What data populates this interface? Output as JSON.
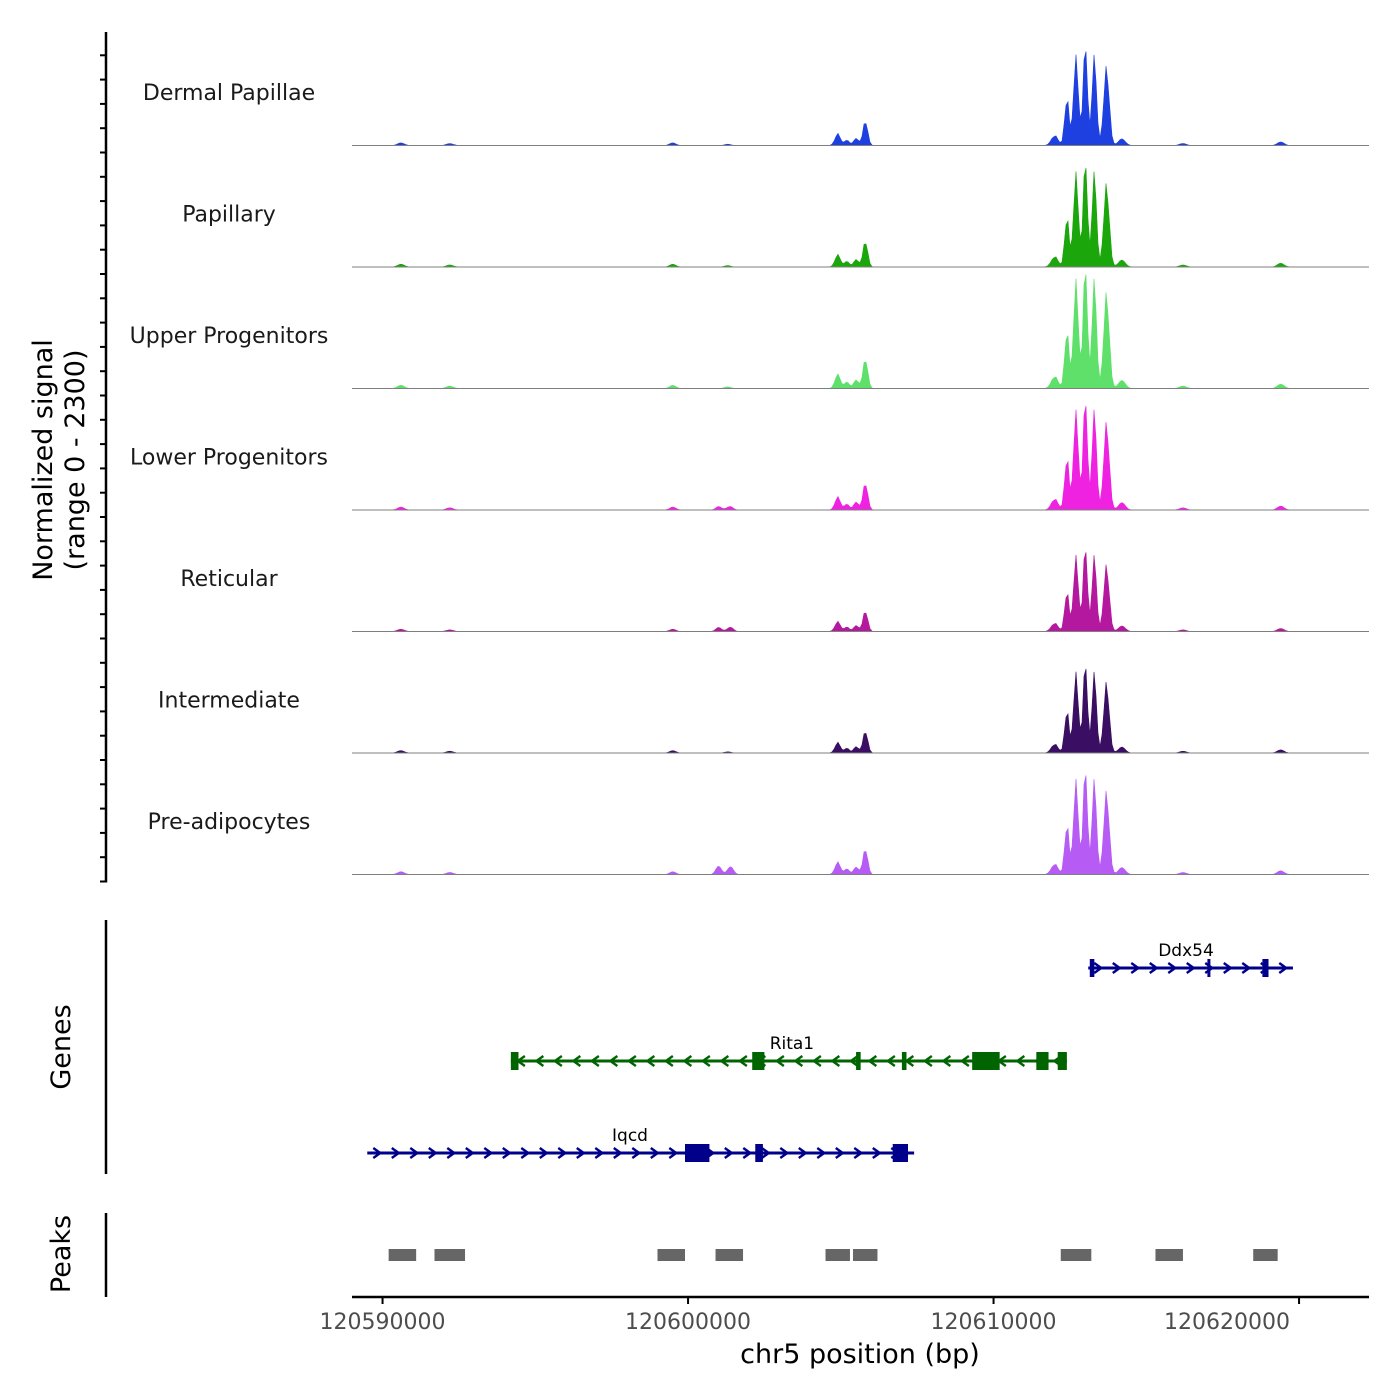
{
  "colors": {
    "axis": "#000000",
    "baseline": "#7f7f7f",
    "peak": "#666666"
  },
  "chart_data": {
    "type": "genome-track",
    "ylabel": [
      "Normalized signal",
      "(range 0 - 2300)"
    ],
    "signal_range": [
      0,
      2300
    ],
    "xlabel": "chr5 position (bp)",
    "xlim": [
      120589000,
      120621000
    ],
    "xticks": [
      120590000,
      120600000,
      120610000,
      120620000
    ],
    "xtick_labels": [
      "120590000",
      "120600000",
      "120610000",
      "120620000"
    ],
    "tracks": [
      {
        "name": "Dermal Papillae",
        "color": "#1e40e0",
        "scale": 0.95,
        "extra": []
      },
      {
        "name": "Papillary",
        "color": "#1ba60b",
        "scale": 1.0,
        "extra": []
      },
      {
        "name": "Upper Progenitors",
        "color": "#5ee06a",
        "scale": 1.15,
        "extra": []
      },
      {
        "name": "Lower Progenitors",
        "color": "#ee22e0",
        "scale": 1.05,
        "extra": [
          [
            120601000,
            70
          ],
          [
            120601400,
            50
          ]
        ]
      },
      {
        "name": "Reticular",
        "color": "#b4189e",
        "scale": 0.8,
        "extra": [
          [
            120601000,
            110
          ],
          [
            120601400,
            95
          ]
        ]
      },
      {
        "name": "Intermediate",
        "color": "#3a0f63",
        "scale": 0.85,
        "extra": []
      },
      {
        "name": "Pre-adipocytes",
        "color": "#b65cf5",
        "scale": 1.0,
        "extra": [
          [
            120601000,
            180
          ],
          [
            120601400,
            150
          ]
        ]
      }
    ],
    "signal_peaks": [
      {
        "pos": 120590600,
        "height": 60,
        "width": 110
      },
      {
        "pos": 120592200,
        "height": 45,
        "width": 110
      },
      {
        "pos": 120599500,
        "height": 60,
        "width": 100
      },
      {
        "pos": 120601300,
        "height": 30,
        "width": 100
      },
      {
        "pos": 120604900,
        "height": 250,
        "width": 90
      },
      {
        "pos": 120605200,
        "height": 120,
        "width": 80
      },
      {
        "pos": 120605500,
        "height": 160,
        "width": 80
      },
      {
        "pos": 120605800,
        "height": 520,
        "width": 80
      },
      {
        "pos": 120612000,
        "height": 220,
        "width": 110
      },
      {
        "pos": 120612400,
        "height": 1100,
        "width": 70
      },
      {
        "pos": 120612700,
        "height": 1900,
        "width": 80
      },
      {
        "pos": 120613000,
        "height": 2250,
        "width": 70
      },
      {
        "pos": 120613300,
        "height": 2100,
        "width": 70
      },
      {
        "pos": 120613700,
        "height": 1700,
        "width": 90
      },
      {
        "pos": 120614200,
        "height": 150,
        "width": 110
      },
      {
        "pos": 120616200,
        "height": 45,
        "width": 110
      },
      {
        "pos": 120619400,
        "height": 80,
        "width": 110
      }
    ],
    "genes_label": "Genes",
    "genes": [
      {
        "name": "Ddx54",
        "strand": "+",
        "color": "#00008b",
        "row": 0,
        "start": 120613100,
        "end": 120619800,
        "label_pos": 120616300,
        "exons": [
          [
            120613150,
            120613300
          ],
          [
            120617000,
            120617080
          ],
          [
            120618800,
            120619000
          ]
        ]
      },
      {
        "name": "Rita1",
        "strand": "-",
        "color": "#006400",
        "row": 1,
        "start": 120594200,
        "end": 120612400,
        "label_pos": 120603400,
        "exons": [
          [
            120594200,
            120594450
          ],
          [
            120602100,
            120602500
          ],
          [
            120605500,
            120605650
          ],
          [
            120607000,
            120607150
          ],
          [
            120609300,
            120610200
          ],
          [
            120611400,
            120611800
          ],
          [
            120612100,
            120612400
          ]
        ]
      },
      {
        "name": "Iqcd",
        "strand": "+",
        "color": "#00008b",
        "row": 2,
        "start": 120589500,
        "end": 120607400,
        "label_pos": 120598100,
        "exons": [
          [
            120599900,
            120600700
          ],
          [
            120602200,
            120602450
          ],
          [
            120606700,
            120607200
          ]
        ]
      }
    ],
    "peaks_label": "Peaks",
    "peaks": [
      [
        120590200,
        120591100
      ],
      [
        120591700,
        120592700
      ],
      [
        120599000,
        120599900
      ],
      [
        120600900,
        120601800
      ],
      [
        120604500,
        120605300
      ],
      [
        120605400,
        120606200
      ],
      [
        120612200,
        120613200
      ],
      [
        120615300,
        120616200
      ],
      [
        120618500,
        120619300
      ]
    ]
  }
}
